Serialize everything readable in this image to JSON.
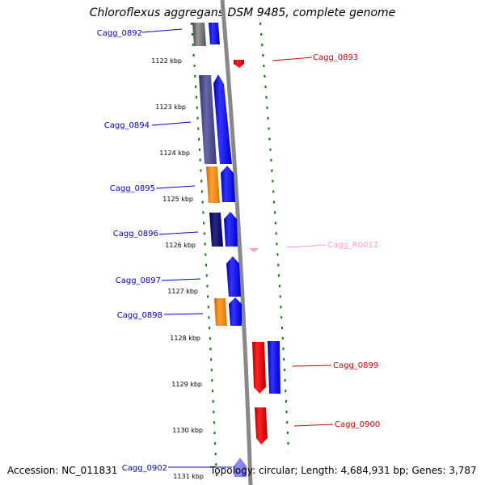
{
  "title": "Chloroflexus aggregans DSM 9485, complete genome",
  "footer": {
    "accession": "Accession: NC_011831",
    "info": "Topology: circular; Length: 4,684,931 bp; Genes: 3,787"
  },
  "colors": {
    "plus_strand": "#0000ee",
    "minus_strand": "#dd0000",
    "rna": "#ff99cc",
    "backbone": "#888888",
    "ticks": "#006600"
  },
  "kbp_labels": [
    "1122 kbp",
    "1123 kbp",
    "1124 kbp",
    "1125 kbp",
    "1126 kbp",
    "1127 kbp",
    "1128 kbp",
    "1129 kbp",
    "1130 kbp",
    "1131 kbp"
  ],
  "left_labels": [
    "Cagg_0892",
    "Cagg_0894",
    "Cagg_0895",
    "Cagg_0896",
    "Cagg_0897",
    "Cagg_0898",
    "Cagg_0902"
  ],
  "right_labels": [
    "Cagg_0893",
    "Cagg_R0012",
    "Cagg_0899",
    "Cagg_0900"
  ]
}
